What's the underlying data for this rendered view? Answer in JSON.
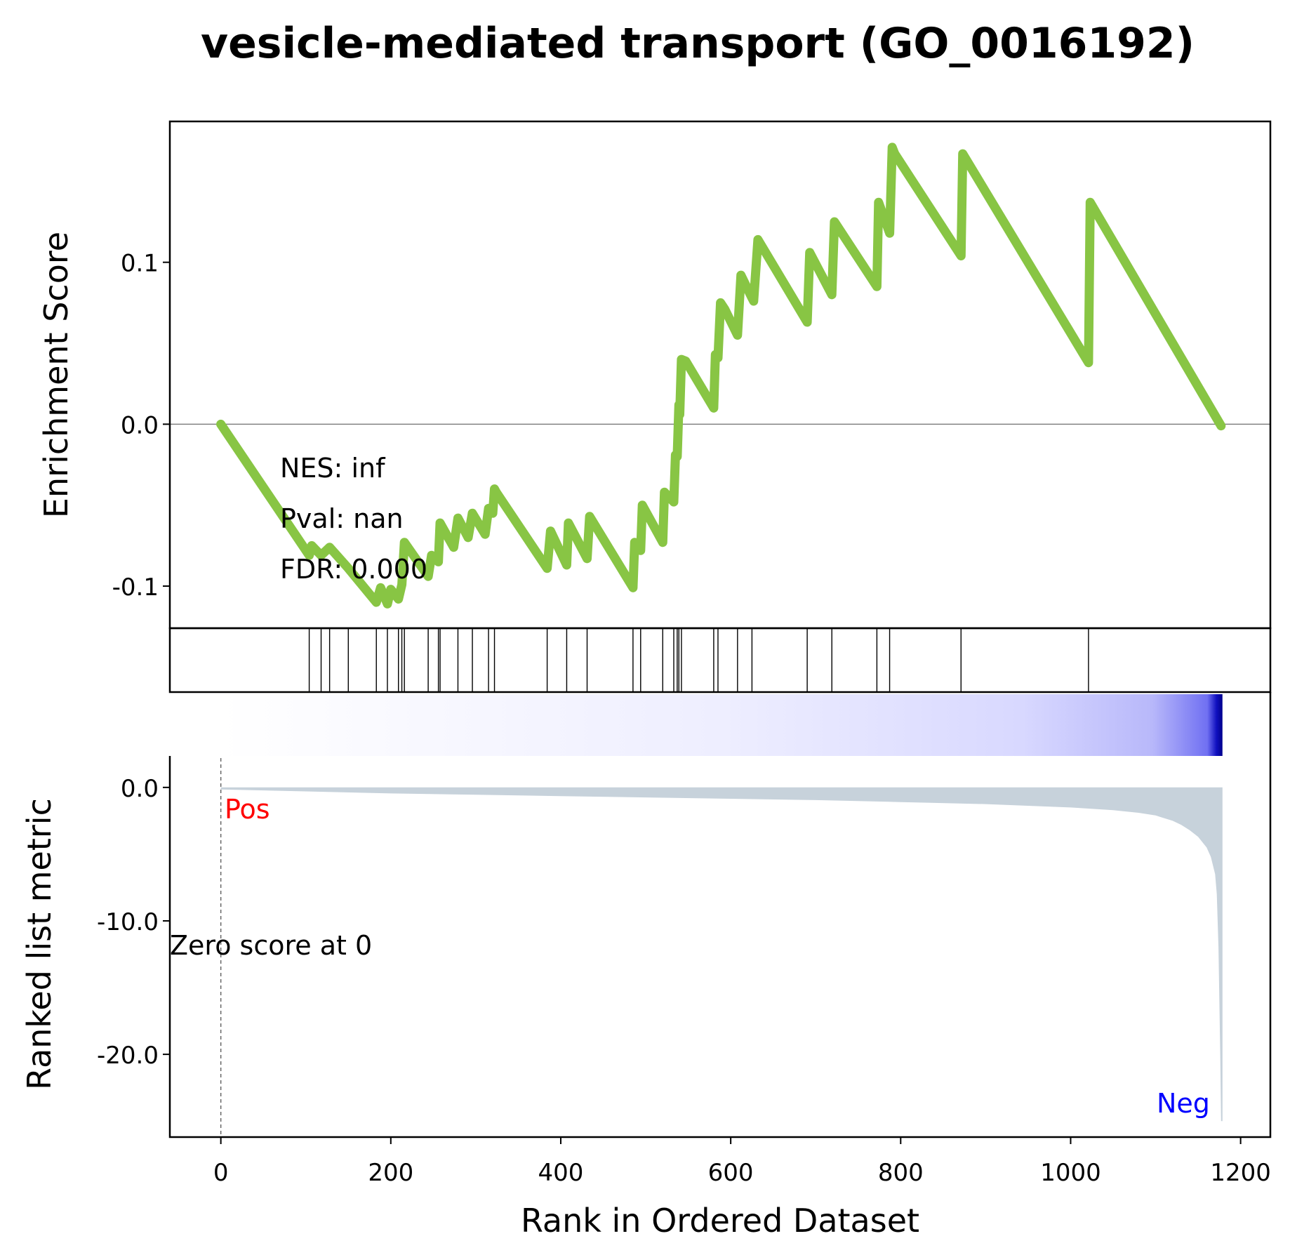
{
  "chart_data": {
    "type": "line",
    "title": "vesicle-mediated transport (GO_0016192)",
    "xlabel": "Rank in Ordered Dataset",
    "xlim": [
      -60,
      1235
    ],
    "x_ticks": [
      0,
      200,
      400,
      600,
      800,
      1000,
      1200
    ],
    "enrichment": {
      "ylabel": "Enrichment Score",
      "ylim": [
        -0.126,
        0.187
      ],
      "y_ticks": [
        0.1,
        0.0,
        -0.1
      ],
      "y_tick_labels": [
        "0.1",
        "0.0",
        "-0.1"
      ],
      "color": "#88c544",
      "x": [
        0,
        104,
        107,
        118,
        128,
        150,
        183,
        188,
        196,
        200,
        209,
        213,
        216,
        244,
        248,
        256,
        258,
        274,
        279,
        291,
        296,
        311,
        315,
        320,
        322,
        324,
        384,
        388,
        407,
        409,
        431,
        434,
        485,
        487,
        494,
        496,
        520,
        522,
        533,
        535,
        537,
        539,
        540,
        542,
        547,
        580,
        582,
        585,
        588,
        593,
        608,
        612,
        625,
        627,
        632,
        690,
        693,
        719,
        722,
        772,
        774,
        787,
        790,
        793,
        871,
        873,
        1021,
        1023,
        1177
      ],
      "y": [
        0,
        -0.081,
        -0.075,
        -0.081,
        -0.076,
        -0.089,
        -0.11,
        -0.101,
        -0.111,
        -0.102,
        -0.108,
        -0.099,
        -0.073,
        -0.094,
        -0.081,
        -0.085,
        -0.061,
        -0.076,
        -0.058,
        -0.07,
        -0.055,
        -0.068,
        -0.052,
        -0.055,
        -0.04,
        -0.042,
        -0.089,
        -0.066,
        -0.087,
        -0.061,
        -0.083,
        -0.057,
        -0.101,
        -0.073,
        -0.078,
        -0.05,
        -0.073,
        -0.042,
        -0.048,
        -0.019,
        -0.02,
        0.012,
        0.006,
        0.04,
        0.039,
        0.01,
        0.043,
        0.041,
        0.075,
        0.071,
        0.055,
        0.092,
        0.078,
        0.076,
        0.114,
        0.063,
        0.106,
        0.08,
        0.125,
        0.085,
        0.137,
        0.118,
        0.171,
        0.167,
        0.104,
        0.167,
        0.038,
        0.137,
        -0.001
      ]
    },
    "hits": [
      104,
      118,
      128,
      150,
      183,
      196,
      209,
      213,
      216,
      244,
      256,
      258,
      279,
      296,
      315,
      322,
      384,
      407,
      431,
      485,
      494,
      520,
      533,
      537,
      539,
      542,
      580,
      585,
      608,
      625,
      690,
      719,
      772,
      787,
      871,
      1021
    ],
    "annotations": [
      "NES: inf",
      "Pval: nan",
      "FDR: 0.000"
    ],
    "heatmap": {
      "colormap": "white-to-blue",
      "low_color": "#ffffff",
      "high_color": "#0000ff",
      "end_color": "#00008b"
    },
    "ranked_metric": {
      "ylabel": "Ranked list metric",
      "ylim": [
        -26.2,
        2.2
      ],
      "y_ticks": [
        0,
        -10,
        -20
      ],
      "y_tick_labels": [
        "0.0",
        "-10.0",
        "-20.0"
      ],
      "fill_color": "#c7d2db",
      "x": [
        0,
        100,
        200,
        300,
        400,
        500,
        600,
        700,
        800,
        900,
        1000,
        1050,
        1080,
        1100,
        1120,
        1130,
        1140,
        1150,
        1160,
        1165,
        1170,
        1172,
        1174,
        1176,
        1177
      ],
      "y": [
        -0.15,
        -0.3,
        -0.45,
        -0.55,
        -0.65,
        -0.75,
        -0.85,
        -0.95,
        -1.1,
        -1.25,
        -1.5,
        -1.7,
        -1.9,
        -2.1,
        -2.5,
        -2.8,
        -3.2,
        -3.7,
        -4.5,
        -5.2,
        -6.5,
        -8.0,
        -12.0,
        -20.0,
        -25.0
      ],
      "zero_score_label": "Zero score at 0",
      "pos_label": "Pos",
      "neg_label": "Neg",
      "pos_color": "#ff0000",
      "neg_color": "#0000ff"
    }
  }
}
